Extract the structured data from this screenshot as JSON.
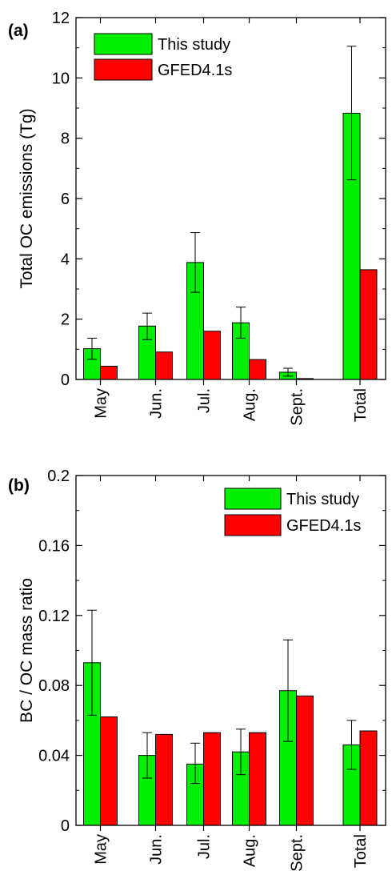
{
  "chart_data": [
    {
      "type": "bar",
      "panel_label": "(a)",
      "ylabel": "Total OC emissions (Tg)",
      "ylim": [
        0,
        12
      ],
      "yticks": [
        0,
        2,
        4,
        6,
        8,
        10,
        12
      ],
      "categories": [
        "May",
        "Jun.",
        "Jul.",
        "Aug.",
        "Sept.",
        "Total"
      ],
      "series": [
        {
          "name": "This study",
          "color": "#00ee00",
          "values": [
            1.02,
            1.77,
            3.88,
            1.88,
            0.24,
            8.83
          ],
          "error_upper": [
            1.37,
            2.2,
            4.87,
            2.4,
            0.37,
            11.05
          ],
          "error_lower": [
            0.67,
            1.32,
            2.89,
            1.37,
            0.11,
            6.62
          ]
        },
        {
          "name": "GFED4.1s",
          "color": "#ff0000",
          "values": [
            0.44,
            0.91,
            1.6,
            0.66,
            0.03,
            3.64
          ]
        }
      ],
      "legend_position": "top-left",
      "grid": false
    },
    {
      "type": "bar",
      "panel_label": "(b)",
      "ylabel": "BC / OC mass ratio",
      "ylim": [
        0,
        0.2
      ],
      "yticks": [
        "0",
        "0.04",
        "0.08",
        "0.12",
        "0.16",
        "0.2"
      ],
      "categories": [
        "May",
        "Jun.",
        "Jul.",
        "Aug.",
        "Sept.",
        "Total"
      ],
      "series": [
        {
          "name": "This study",
          "color": "#00ee00",
          "values": [
            0.093,
            0.04,
            0.035,
            0.042,
            0.077,
            0.046
          ],
          "error_upper": [
            0.123,
            0.053,
            0.047,
            0.055,
            0.106,
            0.06
          ],
          "error_lower": [
            0.063,
            0.027,
            0.024,
            0.029,
            0.048,
            0.032
          ]
        },
        {
          "name": "GFED4.1s",
          "color": "#ff0000",
          "values": [
            0.062,
            0.052,
            0.053,
            0.053,
            0.074,
            0.054
          ]
        }
      ],
      "legend_position": "top-right",
      "grid": false
    }
  ]
}
